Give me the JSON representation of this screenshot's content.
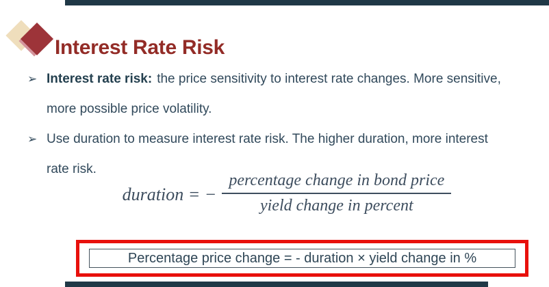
{
  "slide": {
    "decor": {
      "bar_color": "#1f3846"
    },
    "header": {
      "title": "Interest Rate Risk",
      "title_color": "#932c27",
      "icon": {
        "name": "overlapping-diamonds",
        "back_color": "#efdebc",
        "middle_color": "#d4949c",
        "front_color": "#9d3439"
      }
    },
    "bullets": {
      "marker": "➢",
      "items": [
        {
          "lead": "Interest rate risk:",
          "rest": "the price sensitivity to interest rate changes. More sensitive, more possible price volatility."
        },
        {
          "lead": "",
          "rest": "Use duration to measure interest rate risk. The higher duration, more interest rate risk."
        }
      ]
    },
    "formula": {
      "lhs": "duration = −",
      "numerator": "percentage change in bond price",
      "denominator": "yield change in percent"
    },
    "highlight": {
      "text": "Percentage price change = - duration × yield change in %",
      "outer_border_color": "#e8100c",
      "inner_border_color": "#44525c"
    }
  }
}
